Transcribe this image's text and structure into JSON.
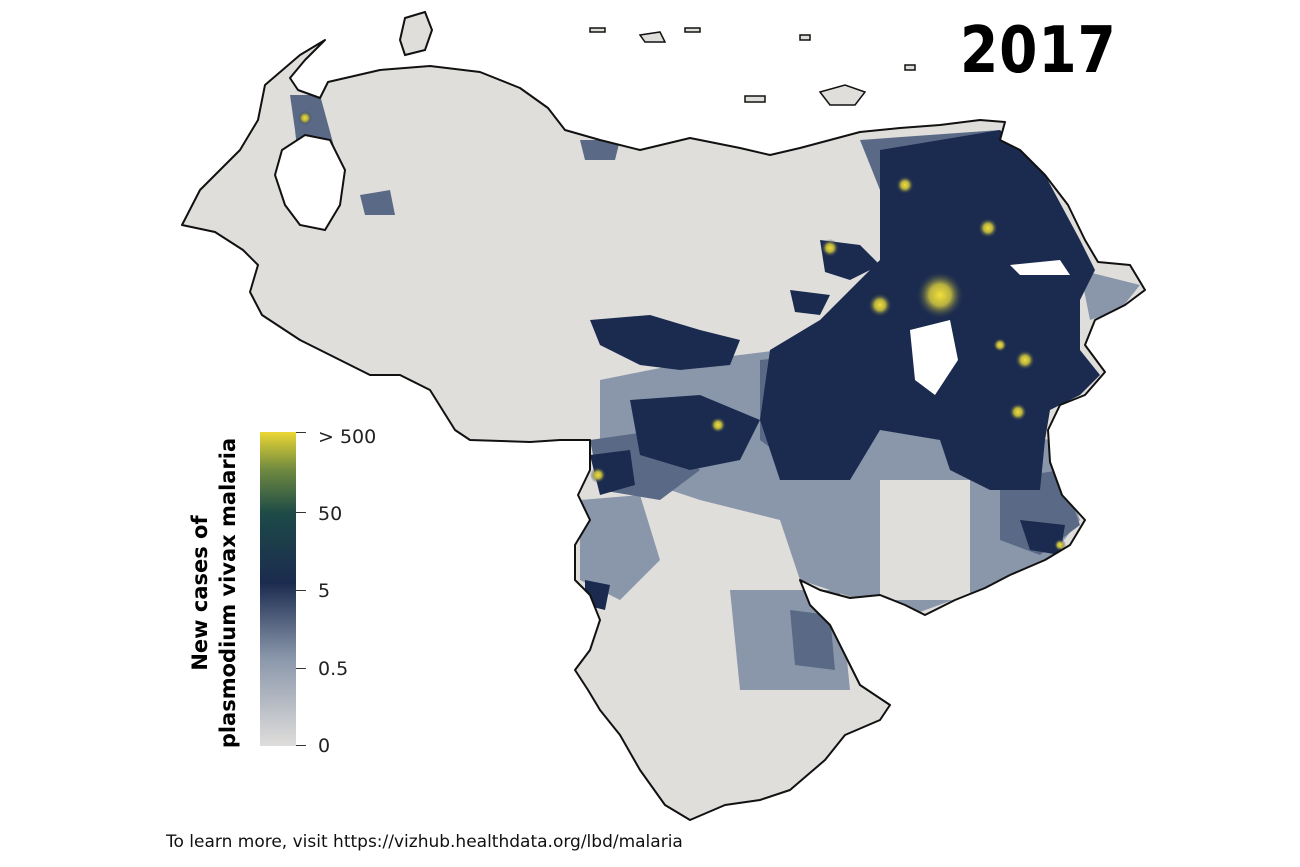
{
  "year": "2017",
  "legend": {
    "title_line1": "New cases of",
    "title_line2": "plasmodium vivax malaria",
    "ticks": [
      "> 500",
      "50",
      "5",
      "0.5",
      "0"
    ],
    "gradient_colors": [
      "#e8d43a",
      "#1d4a47",
      "#1b2b4f",
      "#8a97ab",
      "#dfdddb"
    ]
  },
  "footer": "To learn more, visit https://vizhub.healthdata.org/lbd/malaria",
  "colors": {
    "land": "#e0dedb",
    "low": "#8a97ab",
    "mid": "#5a6a86",
    "high": "#1b2b4f",
    "hotspot": "#e8d43a",
    "outline": "#111111"
  }
}
